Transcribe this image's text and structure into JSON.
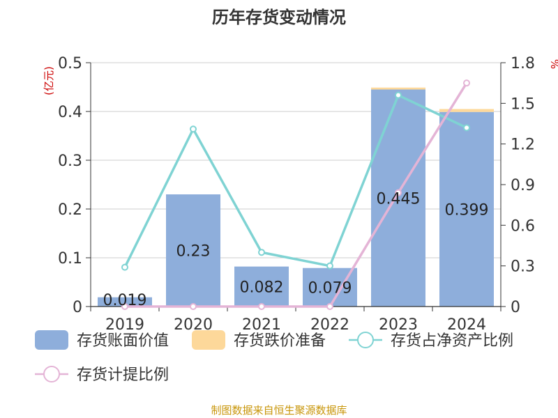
{
  "chart_data": {
    "type": "bar",
    "title": "历年存货变动情况",
    "categories": [
      "2019",
      "2020",
      "2021",
      "2022",
      "2023",
      "2024"
    ],
    "y_left": {
      "unit": "(亿元)",
      "ylim": [
        0,
        0.5
      ],
      "ticks": [
        "0",
        "0.1",
        "0.2",
        "0.3",
        "0.4",
        "0.5"
      ]
    },
    "y_right": {
      "unit": "%",
      "ylim": [
        0,
        1.8
      ],
      "ticks": [
        "0",
        "0.3",
        "0.6",
        "0.9",
        "1.2",
        "1.5",
        "1.8"
      ]
    },
    "series": [
      {
        "name": "存货账面价值",
        "kind": "bar",
        "axis": "left",
        "color": "#8eaedb",
        "values": [
          0.019,
          0.23,
          0.082,
          0.079,
          0.445,
          0.399
        ],
        "labels": [
          "0.019",
          "0.23",
          "0.082",
          "0.079",
          "0.445",
          "0.399"
        ]
      },
      {
        "name": "存货跌价准备",
        "kind": "bar-stacked",
        "axis": "left",
        "color": "#fdd89a",
        "values": [
          0,
          0,
          0,
          0,
          0.004,
          0.006
        ]
      },
      {
        "name": "存货占净资产比例",
        "kind": "line",
        "axis": "right",
        "color": "#7fd3d3",
        "values": [
          0.29,
          1.31,
          0.4,
          0.3,
          1.56,
          1.32
        ]
      },
      {
        "name": "存货计提比例",
        "kind": "line",
        "axis": "right",
        "color": "#e4b4d6",
        "values": [
          0,
          0,
          0,
          0,
          0.84,
          1.65
        ]
      }
    ],
    "grid": true,
    "legend": "bottom"
  },
  "source": "制图数据来自恒生聚源数据库"
}
